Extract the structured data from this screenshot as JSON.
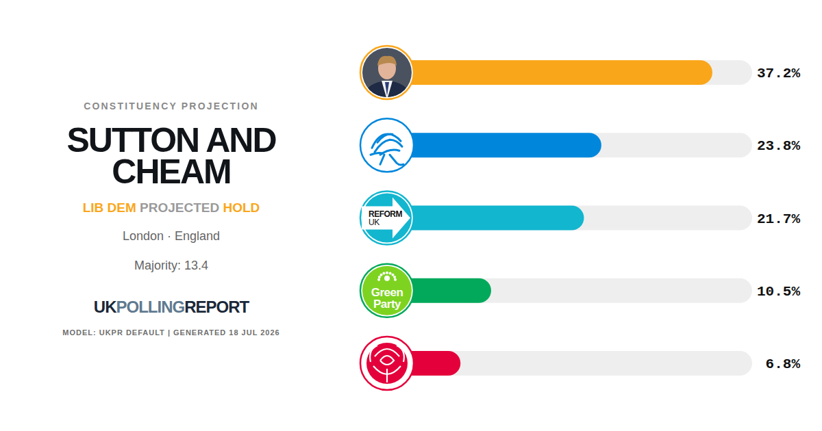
{
  "chart_data": {
    "type": "bar",
    "orientation": "horizontal",
    "title": "SUTTON AND CHEAM",
    "subtitle": "CONSTITUENCY PROJECTION",
    "annotations": {
      "status": [
        "LIB DEM",
        "PROJECTED",
        "HOLD"
      ],
      "location": "London · England",
      "majority": "Majority: 13.4",
      "brand": [
        "UK",
        "POLLING",
        "REPORT"
      ],
      "footer": "MODEL: UKPR DEFAULT | GENERATED 18 JUL 2026"
    },
    "categories": [
      null,
      null,
      "REFORM UK",
      "Green Party",
      null
    ],
    "values": [
      37.2,
      23.8,
      21.7,
      10.5,
      6.8
    ],
    "value_labels": [
      "37.2%",
      "23.8%",
      "21.7%",
      "10.5%",
      "6.8%"
    ],
    "colors": [
      "#faa61a",
      "#0087dc",
      "#12b6cf",
      "#02a95b",
      "#e4003b"
    ],
    "xlim": [
      0,
      42
    ],
    "data_labels": true,
    "tick_labels": false,
    "grid": false
  }
}
